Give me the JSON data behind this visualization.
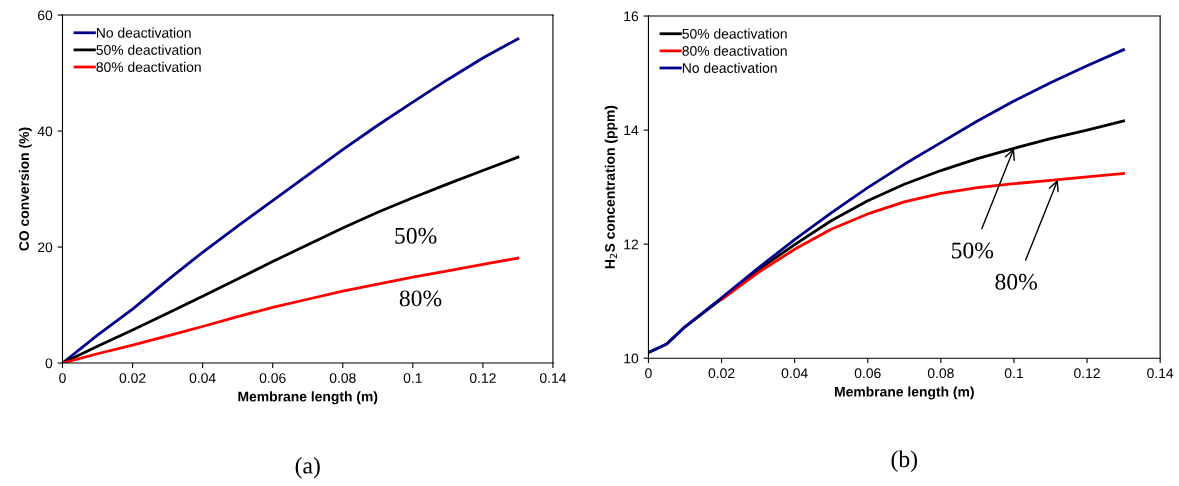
{
  "chart_data": [
    {
      "type": "line",
      "xlabel": "Membrane length (m)",
      "ylabel": "CO conversion (%)",
      "xlim": [
        0,
        0.14
      ],
      "xticks": [
        0,
        0.02,
        0.04,
        0.06,
        0.08,
        0.1,
        0.12,
        0.14
      ],
      "ylim": [
        0,
        60
      ],
      "yticks": [
        0,
        20,
        40,
        60
      ],
      "grid": false,
      "legend": "top left",
      "marker": "none",
      "line_style": "solid",
      "x": [
        0,
        0.01,
        0.02,
        0.03,
        0.04,
        0.05,
        0.06,
        0.07,
        0.08,
        0.09,
        0.1,
        0.11,
        0.12,
        0.13
      ],
      "series": [
        {
          "name": "No deactivation",
          "color": "#00008b",
          "values": [
            0,
            4.8,
            9.3,
            14.3,
            19.1,
            23.6,
            28.0,
            32.4,
            36.8,
            41.0,
            45.0,
            48.9,
            52.6,
            55.9
          ]
        },
        {
          "name": "50% deactivation",
          "color": "#000000",
          "values": [
            0,
            2.9,
            5.7,
            8.6,
            11.5,
            14.5,
            17.5,
            20.4,
            23.3,
            26.0,
            28.5,
            30.9,
            33.2,
            35.5
          ]
        },
        {
          "name": "80% deactivation",
          "color": "#ff0000",
          "values": [
            0,
            1.6,
            3.1,
            4.7,
            6.3,
            8.0,
            9.6,
            11.0,
            12.4,
            13.6,
            14.8,
            15.9,
            17.0,
            18.1
          ]
        }
      ],
      "annotations": [
        "(a)",
        "50%",
        "80%"
      ]
    },
    {
      "type": "line",
      "xlabel": "Membrane length (m)",
      "ylabel": "H$_{2}$S concentration (ppm)",
      "xlim": [
        0,
        0.14
      ],
      "xticks": [
        0,
        0.02,
        0.04,
        0.06,
        0.08,
        0.1,
        0.12,
        0.14
      ],
      "ylim": [
        10,
        16
      ],
      "yticks": [
        10,
        12,
        14,
        16
      ],
      "grid": false,
      "legend": "top left",
      "marker": "none",
      "line_style": "solid",
      "x": [
        0,
        0.005,
        0.01,
        0.02,
        0.03,
        0.04,
        0.05,
        0.06,
        0.07,
        0.08,
        0.09,
        0.1,
        0.11,
        0.12,
        0.13
      ],
      "series": [
        {
          "name": "50% deactivation",
          "color": "#000000",
          "values": [
            10.1,
            10.25,
            10.55,
            11.04,
            11.55,
            11.99,
            12.41,
            12.76,
            13.05,
            13.29,
            13.5,
            13.68,
            13.85,
            14.0,
            14.16
          ]
        },
        {
          "name": "80% deactivation",
          "color": "#ff0000",
          "values": [
            null,
            null,
            null,
            11.03,
            11.5,
            11.91,
            12.26,
            12.53,
            12.74,
            12.89,
            12.99,
            13.06,
            13.12,
            13.18,
            13.24
          ]
        },
        {
          "name": "No deactivation",
          "color": "#00008b",
          "values": [
            10.1,
            10.25,
            10.55,
            11.06,
            11.58,
            12.08,
            12.55,
            12.99,
            13.4,
            13.78,
            14.16,
            14.51,
            14.83,
            15.13,
            15.41
          ]
        }
      ],
      "annotations": [
        "(b)",
        {
          "text": "50%",
          "x": 0.1,
          "y": 13.68
        },
        {
          "text": "80%",
          "x": 0.112,
          "y": 13.13
        }
      ]
    }
  ]
}
